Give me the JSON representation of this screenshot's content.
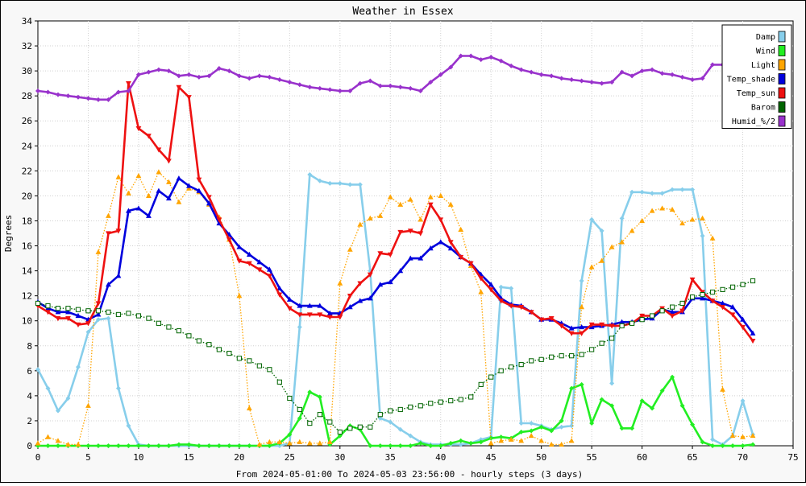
{
  "chart_data": {
    "type": "line",
    "title": "Weather in Essex",
    "xlabel": "From 2024-05-01:00 To 2024-05-03 23:56:00 - hourly steps (3 days)",
    "ylabel": "Degrees",
    "xlim": [
      0,
      75
    ],
    "ylim": [
      0,
      34
    ],
    "x_ticks": [
      "0",
      "5",
      "10",
      "15",
      "20",
      "25",
      "30",
      "35",
      "40",
      "45",
      "50",
      "55",
      "60",
      "65",
      "70",
      "75"
    ],
    "y_ticks": [
      "0",
      "2",
      "4",
      "6",
      "8",
      "10",
      "12",
      "14",
      "16",
      "18",
      "20",
      "22",
      "24",
      "26",
      "28",
      "30",
      "32",
      "34"
    ],
    "grid": true,
    "legend_position": "top-right",
    "series": [
      {
        "name": "Damp",
        "color": "#87ceeb",
        "dash": "solid",
        "marker": "diamond",
        "x": [
          0,
          1,
          2,
          3,
          4,
          5,
          6,
          7,
          8,
          9,
          10,
          11,
          12,
          13,
          14,
          15,
          16,
          17,
          18,
          19,
          20,
          21,
          22,
          23,
          24,
          25,
          26,
          27,
          28,
          29,
          30,
          31,
          32,
          33,
          34,
          35,
          36,
          37,
          38,
          39,
          40,
          41,
          42,
          43,
          44,
          45,
          46,
          47,
          48,
          49,
          50,
          51,
          52,
          53,
          54,
          55,
          56,
          57,
          58,
          59,
          60,
          61,
          62,
          63,
          64,
          65,
          66,
          67,
          68,
          69,
          70,
          71
        ],
        "y": [
          6.1,
          4.6,
          2.8,
          3.8,
          6.3,
          9.1,
          10.1,
          10.2,
          4.6,
          1.6,
          0.1,
          0,
          0,
          0,
          0,
          0,
          0,
          0,
          0,
          0,
          0,
          0,
          0,
          0,
          0,
          0.2,
          9.5,
          21.7,
          21.2,
          21.0,
          21.0,
          20.9,
          20.9,
          14,
          2.2,
          1.9,
          1.3,
          0.8,
          0.3,
          0.1,
          0.1,
          0.1,
          0.1,
          0.2,
          0.5,
          0.7,
          12.7,
          12.6,
          1.8,
          1.8,
          1.6,
          1.3,
          1.5,
          1.6,
          13.2,
          18.1,
          17.2,
          5.0,
          18.2,
          20.3,
          20.3,
          20.2,
          20.2,
          20.5,
          20.5,
          20.5,
          16.8,
          0.5,
          0.1,
          0.8,
          3.6,
          0.9
        ]
      },
      {
        "name": "Wind",
        "color": "#22ee22",
        "dash": "solid",
        "marker": "diamond",
        "x": [
          0,
          1,
          2,
          3,
          4,
          5,
          6,
          7,
          8,
          9,
          10,
          11,
          12,
          13,
          14,
          15,
          16,
          17,
          18,
          19,
          20,
          21,
          22,
          23,
          24,
          25,
          26,
          27,
          28,
          29,
          30,
          31,
          32,
          33,
          34,
          35,
          36,
          37,
          38,
          39,
          40,
          41,
          42,
          43,
          44,
          45,
          46,
          47,
          48,
          49,
          50,
          51,
          52,
          53,
          54,
          55,
          56,
          57,
          58,
          59,
          60,
          61,
          62,
          63,
          64,
          65,
          66,
          67,
          68,
          69,
          70,
          71
        ],
        "y": [
          0,
          0,
          0,
          0,
          0,
          0,
          0,
          0,
          0,
          0,
          0,
          0,
          0,
          0,
          0.1,
          0.1,
          0,
          0,
          0,
          0,
          0,
          0,
          0,
          0,
          0.2,
          0.9,
          2.2,
          4.3,
          3.9,
          0.1,
          0.8,
          1.6,
          1.3,
          0,
          0,
          0,
          0,
          0,
          0.2,
          0,
          0,
          0.2,
          0.4,
          0.2,
          0.3,
          0.6,
          0.7,
          0.6,
          1.1,
          1.2,
          1.5,
          1.2,
          2.0,
          4.6,
          4.9,
          1.8,
          3.7,
          3.2,
          1.4,
          1.4,
          3.6,
          3.0,
          4.4,
          5.5,
          3.2,
          1.7,
          0.3,
          0,
          0,
          0,
          0,
          0.1
        ]
      },
      {
        "name": "Light",
        "color": "#ffa500",
        "dash": "dotted",
        "marker": "triangle-up",
        "x": [
          0,
          1,
          2,
          3,
          4,
          5,
          6,
          7,
          8,
          9,
          10,
          11,
          12,
          13,
          14,
          15,
          16,
          17,
          18,
          19,
          20,
          21,
          22,
          23,
          24,
          25,
          26,
          27,
          28,
          29,
          30,
          31,
          32,
          33,
          34,
          35,
          36,
          37,
          38,
          39,
          40,
          41,
          42,
          43,
          44,
          45,
          46,
          47,
          48,
          49,
          50,
          51,
          52,
          53,
          54,
          55,
          56,
          57,
          58,
          59,
          60,
          61,
          62,
          63,
          64,
          65,
          66,
          67,
          68,
          69,
          70,
          71
        ],
        "y": [
          0.2,
          0.7,
          0.4,
          0.1,
          0.1,
          3.2,
          15.5,
          18.4,
          21.5,
          20.2,
          21.6,
          20,
          21.9,
          21.1,
          19.5,
          20.6,
          20.3,
          19.3,
          18.3,
          16.5,
          12,
          3,
          0.1,
          0.3,
          0.3,
          0.2,
          0.3,
          0.2,
          0.2,
          0.3,
          13,
          15.7,
          17.7,
          18.2,
          18.4,
          19.9,
          19.3,
          19.7,
          18.1,
          19.9,
          20,
          19.3,
          17.3,
          14.4,
          12.3,
          0.2,
          0.4,
          0.5,
          0.4,
          0.8,
          0.4,
          0.1,
          0.1,
          0.4,
          11.1,
          14.3,
          14.8,
          15.9,
          16.3,
          17.2,
          18,
          18.8,
          19,
          18.9,
          17.8,
          18.1,
          18.2,
          16.6,
          4.5,
          0.8,
          0.7,
          0.8
        ]
      },
      {
        "name": "Temp_shade",
        "color": "#0000dd",
        "dash": "solid",
        "marker": "triangle-up",
        "x": [
          0,
          1,
          2,
          3,
          4,
          5,
          6,
          7,
          8,
          9,
          10,
          11,
          12,
          13,
          14,
          15,
          16,
          17,
          18,
          19,
          20,
          21,
          22,
          23,
          24,
          25,
          26,
          27,
          28,
          29,
          30,
          31,
          32,
          33,
          34,
          35,
          36,
          37,
          38,
          39,
          40,
          41,
          42,
          43,
          44,
          45,
          46,
          47,
          48,
          49,
          50,
          51,
          52,
          53,
          54,
          55,
          56,
          57,
          58,
          59,
          60,
          61,
          62,
          63,
          64,
          65,
          66,
          67,
          68,
          69,
          70,
          71
        ],
        "y": [
          11.5,
          11,
          10.7,
          10.7,
          10.4,
          10.1,
          10.5,
          12.9,
          13.6,
          18.8,
          19,
          18.4,
          20.4,
          19.8,
          21.4,
          20.8,
          20.4,
          19.4,
          17.8,
          16.9,
          15.9,
          15.3,
          14.7,
          14.1,
          12.6,
          11.7,
          11.2,
          11.2,
          11.2,
          10.6,
          10.6,
          11.1,
          11.6,
          11.8,
          12.9,
          13.1,
          14,
          15,
          15,
          15.8,
          16.3,
          15.8,
          15.1,
          14.6,
          13.7,
          12.9,
          11.8,
          11.3,
          11.2,
          10.7,
          10.1,
          10.1,
          9.8,
          9.4,
          9.5,
          9.5,
          9.6,
          9.7,
          9.9,
          9.9,
          10.1,
          10.2,
          10.9,
          10.7,
          10.7,
          11.8,
          11.8,
          11.6,
          11.4,
          11.1,
          10.1,
          9
        ]
      },
      {
        "name": "Temp_sun",
        "color": "#ee1111",
        "dash": "solid",
        "marker": "triangle-down",
        "x": [
          0,
          1,
          2,
          3,
          4,
          5,
          6,
          7,
          8,
          9,
          10,
          11,
          12,
          13,
          14,
          15,
          16,
          17,
          18,
          19,
          20,
          21,
          22,
          23,
          24,
          25,
          26,
          27,
          28,
          29,
          30,
          31,
          32,
          33,
          34,
          35,
          36,
          37,
          38,
          39,
          40,
          41,
          42,
          43,
          44,
          45,
          46,
          47,
          48,
          49,
          50,
          51,
          52,
          53,
          54,
          55,
          56,
          57,
          58,
          59,
          60,
          61,
          62,
          63,
          64,
          65,
          66,
          67,
          68,
          69,
          70,
          71
        ],
        "y": [
          11.2,
          10.7,
          10.2,
          10.2,
          9.7,
          9.8,
          11.4,
          17,
          17.2,
          29,
          25.4,
          24.8,
          23.7,
          22.8,
          28.7,
          27.9,
          21.3,
          19.9,
          18.1,
          16.5,
          14.8,
          14.6,
          14.1,
          13.6,
          12.1,
          11,
          10.5,
          10.5,
          10.5,
          10.3,
          10.3,
          12,
          13,
          13.7,
          15.4,
          15.3,
          17.1,
          17.2,
          17,
          19.3,
          18.1,
          16.3,
          15.1,
          14.6,
          13.4,
          12.5,
          11.6,
          11.2,
          11.1,
          10.7,
          10.1,
          10.2,
          9.6,
          9,
          9,
          9.7,
          9.7,
          9.6,
          9.6,
          9.8,
          10.4,
          10.4,
          11,
          10.4,
          10.8,
          13.3,
          12.3,
          11.6,
          11.1,
          10.5,
          9.5,
          8.4
        ]
      },
      {
        "name": "Barom",
        "color": "#006400",
        "dash": "dotted",
        "marker": "square",
        "x": [
          0,
          1,
          2,
          3,
          4,
          5,
          6,
          7,
          8,
          9,
          10,
          11,
          12,
          13,
          14,
          15,
          16,
          17,
          18,
          19,
          20,
          21,
          22,
          23,
          24,
          25,
          26,
          27,
          28,
          29,
          30,
          31,
          32,
          33,
          34,
          35,
          36,
          37,
          38,
          39,
          40,
          41,
          42,
          43,
          44,
          45,
          46,
          47,
          48,
          49,
          50,
          51,
          52,
          53,
          54,
          55,
          56,
          57,
          58,
          59,
          60,
          61,
          62,
          63,
          64,
          65,
          66,
          67,
          68,
          69,
          70,
          71
        ],
        "y": [
          11.4,
          11.2,
          11,
          11,
          10.9,
          10.8,
          10.8,
          10.7,
          10.5,
          10.6,
          10.4,
          10.2,
          9.8,
          9.5,
          9.2,
          8.8,
          8.4,
          8.1,
          7.7,
          7.4,
          7,
          6.8,
          6.4,
          6.1,
          5.1,
          3.8,
          2.9,
          1.8,
          2.5,
          1.9,
          1.1,
          1.4,
          1.5,
          1.5,
          2.5,
          2.8,
          2.9,
          3.1,
          3.2,
          3.4,
          3.5,
          3.6,
          3.7,
          3.9,
          4.9,
          5.5,
          6,
          6.3,
          6.5,
          6.8,
          6.9,
          7.1,
          7.2,
          7.2,
          7.3,
          7.7,
          8.2,
          8.6,
          9.6,
          9.8,
          10.1,
          10.4,
          10.8,
          11.1,
          11.4,
          11.9,
          12.1,
          12.3,
          12.5,
          12.7,
          12.9,
          13.2
        ]
      },
      {
        "name": "Humid_%/2",
        "color": "#9932cc",
        "dash": "solid",
        "marker": "diamond",
        "x": [
          0,
          1,
          2,
          3,
          4,
          5,
          6,
          7,
          8,
          9,
          10,
          11,
          12,
          13,
          14,
          15,
          16,
          17,
          18,
          19,
          20,
          21,
          22,
          23,
          24,
          25,
          26,
          27,
          28,
          29,
          30,
          31,
          32,
          33,
          34,
          35,
          36,
          37,
          38,
          39,
          40,
          41,
          42,
          43,
          44,
          45,
          46,
          47,
          48,
          49,
          50,
          51,
          52,
          53,
          54,
          55,
          56,
          57,
          58,
          59,
          60,
          61,
          62,
          63,
          64,
          65,
          66,
          67,
          68,
          69
        ],
        "y": [
          28.4,
          28.3,
          28.1,
          28,
          27.9,
          27.8,
          27.7,
          27.7,
          28.3,
          28.4,
          29.7,
          29.9,
          30.1,
          30,
          29.6,
          29.7,
          29.5,
          29.6,
          30.2,
          30,
          29.6,
          29.4,
          29.6,
          29.5,
          29.3,
          29.1,
          28.9,
          28.7,
          28.6,
          28.5,
          28.4,
          28.4,
          29,
          29.2,
          28.8,
          28.8,
          28.7,
          28.6,
          28.4,
          29.1,
          29.7,
          30.3,
          31.2,
          31.2,
          30.9,
          31.1,
          30.8,
          30.4,
          30.1,
          29.9,
          29.7,
          29.6,
          29.4,
          29.3,
          29.2,
          29.1,
          29,
          29.1,
          29.9,
          29.6,
          30,
          30.1,
          29.8,
          29.7,
          29.5,
          29.3,
          29.4,
          30.5,
          30.5,
          30.4
        ]
      }
    ]
  }
}
